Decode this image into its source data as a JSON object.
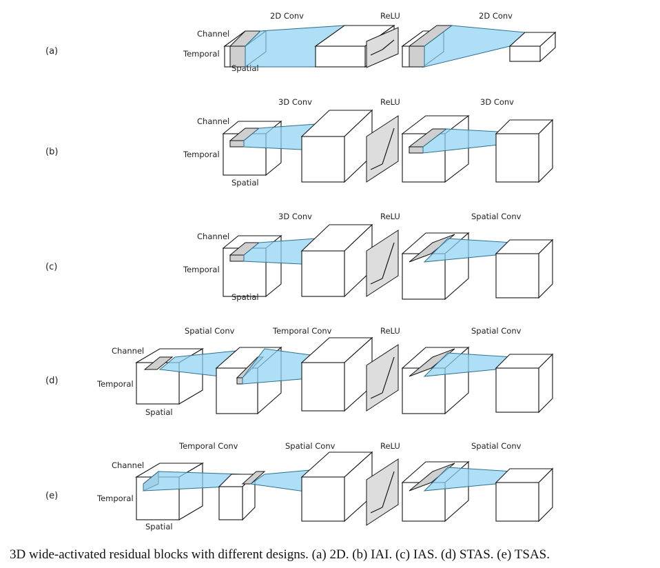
{
  "rows": [
    {
      "id": "a",
      "label": "(a)",
      "ops": [
        "2D Conv",
        "ReLU",
        "2D Conv"
      ],
      "dims": [
        "Channel",
        "Temporal",
        "Spatial"
      ]
    },
    {
      "id": "b",
      "label": "(b)",
      "ops": [
        "3D Conv",
        "ReLU",
        "3D Conv"
      ],
      "dims": [
        "Channel",
        "Temporal",
        "Spatial"
      ]
    },
    {
      "id": "c",
      "label": "(c)",
      "ops": [
        "3D Conv",
        "ReLU",
        "Spatial Conv"
      ],
      "dims": [
        "Channel",
        "Temporal",
        "Spatial"
      ]
    },
    {
      "id": "d",
      "label": "(d)",
      "ops": [
        "Spatial Conv",
        "Temporal Conv",
        "ReLU",
        "Spatial Conv"
      ],
      "dims": [
        "Channel",
        "Temporal",
        "Spatial"
      ]
    },
    {
      "id": "e",
      "label": "(e)",
      "ops": [
        "Temporal Conv",
        "Spatial Conv",
        "ReLU",
        "Spatial Conv"
      ],
      "dims": [
        "Channel",
        "Temporal",
        "Spatial"
      ]
    }
  ],
  "caption": "3D wide-activated residual blocks with different designs. (a) 2D. (b) IAI. (c) IAS. (d) STAS. (e) TSAS.",
  "colors": {
    "conv_fill": "#8fd3f2",
    "conv_stroke": "#2b6f8e",
    "kernel_fill": "#cfcfcf",
    "relu_fill": "#dddddd",
    "box_stroke": "#111111"
  }
}
